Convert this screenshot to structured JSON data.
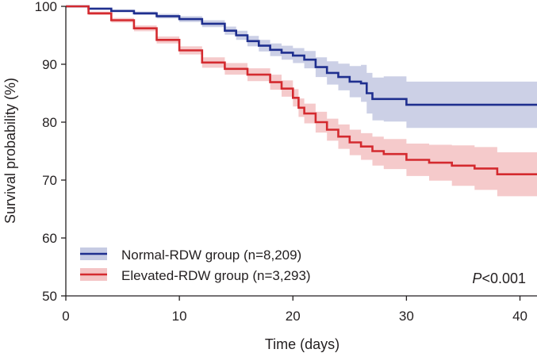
{
  "chart_data": {
    "type": "line",
    "subtype": "kaplan-meier step curve with confidence bands",
    "xlabel": "Time (days)",
    "ylabel": "Survival probability (%)",
    "xlim": [
      0,
      41.5
    ],
    "ylim": [
      50,
      100
    ],
    "xticks": [
      0,
      10,
      20,
      30,
      40
    ],
    "yticks": [
      50,
      60,
      70,
      80,
      90,
      100
    ],
    "grid": false,
    "legend_position": "bottom-left",
    "annotation": {
      "italic": "P",
      "rest": "<0.001"
    },
    "series": [
      {
        "name": "Normal-RDW group (n=8,209)",
        "color": "#1f2f8f",
        "band_color": "#c6cbe3",
        "x": [
          0,
          2,
          4,
          6,
          8,
          10,
          12,
          14,
          15,
          16,
          17,
          18,
          19,
          20,
          21,
          22,
          23,
          24,
          25,
          26,
          26.5,
          27,
          28,
          30,
          41.5
        ],
        "y": [
          100,
          99.6,
          99.2,
          98.8,
          98.3,
          97.8,
          97.0,
          95.8,
          95.0,
          94.0,
          93.2,
          92.5,
          92.0,
          91.5,
          90.8,
          89.5,
          88.5,
          87.8,
          87.0,
          86.7,
          85.0,
          84.0,
          84.0,
          83.0,
          83.0
        ],
        "lower": [
          100,
          99.5,
          99.0,
          98.5,
          97.9,
          97.3,
          96.4,
          95.1,
          94.2,
          93.1,
          92.2,
          91.4,
          90.8,
          90.2,
          89.3,
          87.8,
          86.5,
          85.5,
          84.3,
          83.5,
          81.5,
          80.3,
          80.1,
          79.0,
          79.0
        ],
        "upper": [
          100,
          99.7,
          99.4,
          99.1,
          98.7,
          98.3,
          97.6,
          96.5,
          95.8,
          94.9,
          94.2,
          93.6,
          93.2,
          92.8,
          92.3,
          91.2,
          90.5,
          90.1,
          89.7,
          89.9,
          88.5,
          87.7,
          87.9,
          87.0,
          87.0
        ]
      },
      {
        "name": "Elevated-RDW group (n=3,293)",
        "color": "#d42a2f",
        "band_color": "#f4c4c5",
        "x": [
          0,
          2,
          4,
          6,
          8,
          10,
          12,
          14,
          16,
          18,
          19,
          20,
          20.5,
          21,
          22,
          23,
          24,
          25,
          26,
          27,
          28,
          30,
          32,
          34,
          36,
          38,
          41.5
        ],
        "y": [
          100,
          98.8,
          97.6,
          96.2,
          94.2,
          92.4,
          90.3,
          89.2,
          88.2,
          86.9,
          85.8,
          84.2,
          82.5,
          81.5,
          80.0,
          78.7,
          77.5,
          76.5,
          75.8,
          75.0,
          74.5,
          73.5,
          73.0,
          72.5,
          72.0,
          71.0,
          71.0
        ],
        "lower": [
          100,
          98.5,
          97.2,
          95.7,
          93.6,
          91.7,
          89.4,
          88.2,
          87.1,
          85.6,
          84.4,
          82.7,
          80.9,
          79.8,
          78.2,
          76.8,
          75.4,
          74.3,
          73.5,
          72.5,
          71.9,
          70.7,
          69.9,
          69.0,
          68.3,
          67.2,
          66.5
        ],
        "upper": [
          100,
          99.1,
          98.0,
          96.7,
          94.8,
          93.1,
          91.2,
          90.2,
          89.3,
          88.2,
          87.2,
          85.7,
          84.1,
          83.2,
          81.8,
          80.6,
          79.6,
          78.7,
          78.1,
          77.5,
          77.1,
          76.3,
          76.1,
          76.0,
          75.7,
          74.8,
          75.5
        ]
      }
    ]
  }
}
